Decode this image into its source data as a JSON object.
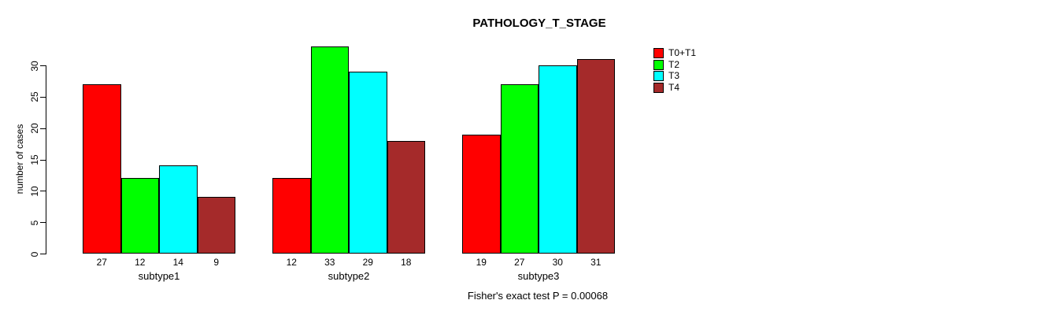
{
  "title": "PATHOLOGY_T_STAGE",
  "ylabel": "number of cases",
  "footer": "Fisher's exact test P = 0.00068",
  "legend": {
    "entries": [
      {
        "label": "T0+T1",
        "color": "#ff0000"
      },
      {
        "label": "T2",
        "color": "#00ff00"
      },
      {
        "label": "T3",
        "color": "#00ffff"
      },
      {
        "label": "T4",
        "color": "#a52a2a"
      }
    ]
  },
  "chart_data": {
    "type": "bar",
    "title": "PATHOLOGY_T_STAGE",
    "xlabel": "",
    "ylabel": "number of cases",
    "categories": [
      "subtype1",
      "subtype2",
      "subtype3"
    ],
    "series": [
      {
        "name": "T0+T1",
        "color": "#ff0000",
        "values": [
          27,
          12,
          19
        ]
      },
      {
        "name": "T2",
        "color": "#00ff00",
        "values": [
          12,
          33,
          27
        ]
      },
      {
        "name": "T3",
        "color": "#00ffff",
        "values": [
          14,
          29,
          30
        ]
      },
      {
        "name": "T4",
        "color": "#a52a2a",
        "values": [
          9,
          18,
          31
        ]
      }
    ],
    "bar_value_labels": [
      [
        "27",
        "12",
        "14",
        "9"
      ],
      [
        "12",
        "33",
        "29",
        "18"
      ],
      [
        "19",
        "27",
        "30",
        "31"
      ]
    ],
    "yticks": [
      0,
      5,
      10,
      15,
      20,
      25,
      30
    ],
    "ylim": [
      0,
      33
    ],
    "grid": false,
    "legend_position": "right",
    "annotation": "Fisher's exact test P = 0.00068"
  }
}
